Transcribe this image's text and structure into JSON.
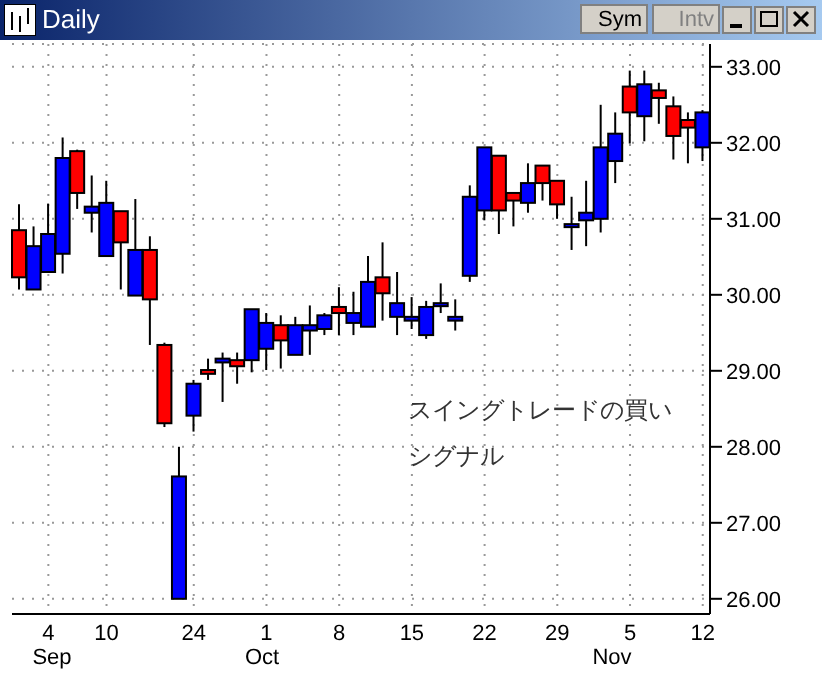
{
  "chart_data": {
    "type": "candlestick",
    "title": "Daily",
    "categories": [
      null,
      null,
      "4",
      null,
      null,
      null,
      "10",
      null,
      null,
      null,
      null,
      null,
      "24",
      null,
      null,
      null,
      null,
      "1",
      null,
      null,
      null,
      null,
      "8",
      null,
      null,
      null,
      null,
      "15",
      null,
      null,
      null,
      null,
      "22",
      null,
      null,
      null,
      null,
      "29",
      null,
      null,
      null,
      null,
      "5",
      null,
      null,
      null,
      null,
      "12"
    ],
    "ohlc": [
      [
        30.85,
        31.19,
        30.07,
        30.23
      ],
      [
        30.07,
        30.9,
        30.07,
        30.64
      ],
      [
        30.3,
        31.2,
        30.3,
        30.8
      ],
      [
        30.54,
        32.07,
        30.28,
        31.8
      ],
      [
        31.89,
        31.91,
        31.13,
        31.34
      ],
      [
        31.08,
        31.57,
        30.82,
        31.16
      ],
      [
        30.51,
        31.5,
        30.51,
        31.21
      ],
      [
        31.1,
        31.1,
        30.07,
        30.69
      ],
      [
        29.99,
        31.26,
        29.99,
        30.59
      ],
      [
        30.59,
        30.77,
        29.34,
        29.94
      ],
      [
        29.34,
        29.37,
        28.26,
        28.31
      ],
      [
        26.0,
        28.0,
        26.0,
        27.61
      ],
      [
        28.41,
        28.88,
        28.2,
        28.83
      ],
      [
        29.01,
        29.16,
        28.88,
        28.96
      ],
      [
        29.11,
        29.24,
        28.59,
        29.16
      ],
      [
        29.14,
        29.24,
        28.83,
        29.06
      ],
      [
        29.14,
        29.81,
        28.98,
        29.81
      ],
      [
        29.29,
        29.76,
        29.01,
        29.63
      ],
      [
        29.6,
        29.73,
        29.03,
        29.4
      ],
      [
        29.21,
        29.71,
        29.21,
        29.6
      ],
      [
        29.53,
        29.86,
        29.21,
        29.6
      ],
      [
        29.55,
        29.76,
        29.47,
        29.73
      ],
      [
        29.84,
        30.1,
        29.47,
        29.76
      ],
      [
        29.63,
        30.04,
        29.47,
        29.76
      ],
      [
        29.58,
        30.51,
        29.58,
        30.17
      ],
      [
        30.23,
        30.69,
        29.66,
        30.02
      ],
      [
        29.71,
        30.3,
        29.47,
        29.89
      ],
      [
        29.66,
        29.97,
        29.55,
        29.71
      ],
      [
        29.47,
        29.92,
        29.42,
        29.84
      ],
      [
        29.86,
        30.15,
        29.76,
        29.89
      ],
      [
        29.66,
        29.94,
        29.53,
        29.71
      ],
      [
        30.25,
        31.44,
        30.17,
        31.29
      ],
      [
        31.11,
        31.94,
        30.98,
        31.94
      ],
      [
        31.83,
        31.83,
        30.8,
        31.11
      ],
      [
        31.34,
        31.34,
        30.9,
        31.24
      ],
      [
        31.21,
        31.73,
        31.08,
        31.47
      ],
      [
        31.7,
        31.7,
        31.24,
        31.47
      ],
      [
        31.5,
        31.5,
        31.0,
        31.19
      ],
      [
        30.9,
        31.29,
        30.59,
        30.93
      ],
      [
        30.98,
        31.5,
        30.64,
        31.08
      ],
      [
        31.0,
        32.5,
        30.82,
        31.94
      ],
      [
        31.76,
        32.4,
        31.47,
        32.12
      ],
      [
        32.74,
        32.95,
        31.99,
        32.4
      ],
      [
        32.35,
        32.95,
        32.02,
        32.77
      ],
      [
        32.69,
        32.79,
        32.25,
        32.59
      ],
      [
        32.48,
        32.61,
        31.78,
        32.09
      ],
      [
        32.3,
        32.4,
        31.73,
        32.2
      ],
      [
        31.94,
        32.43,
        31.76,
        32.4
      ]
    ],
    "colors": [
      "#ff0000",
      "#0000ff",
      "#0000ff",
      "#0000ff",
      "#ff0000",
      "#0000ff",
      "#0000ff",
      "#ff0000",
      "#0000ff",
      "#ff0000",
      "#ff0000",
      "#0000ff",
      "#0000ff",
      "#ff0000",
      "#0000ff",
      "#ff0000",
      "#0000ff",
      "#0000ff",
      "#ff0000",
      "#0000ff",
      "#0000ff",
      "#0000ff",
      "#ff0000",
      "#0000ff",
      "#0000ff",
      "#ff0000",
      "#0000ff",
      "#0000ff",
      "#0000ff",
      "#0000ff",
      "#0000ff",
      "#0000ff",
      "#0000ff",
      "#ff0000",
      "#ff0000",
      "#0000ff",
      "#ff0000",
      "#ff0000",
      "#0000ff",
      "#0000ff",
      "#0000ff",
      "#0000ff",
      "#ff0000",
      "#0000ff",
      "#ff0000",
      "#ff0000",
      "#ff0000",
      "#0000ff"
    ],
    "ylim": [
      25.8,
      33.3
    ],
    "yticks": [
      {
        "value": 26,
        "label": "26.00"
      },
      {
        "value": 27,
        "label": "27.00"
      },
      {
        "value": 28,
        "label": "28.00"
      },
      {
        "value": 29,
        "label": "29.00"
      },
      {
        "value": 30,
        "label": "30.00"
      },
      {
        "value": 31,
        "label": "31.00"
      },
      {
        "value": 32,
        "label": "32.00"
      },
      {
        "value": 33,
        "label": "33.00"
      }
    ],
    "grid": true,
    "annotations": [
      "スイングトレードの買い",
      "シグナル",
      "Sep",
      "Oct",
      "Nov",
      "Sym",
      "Intv"
    ]
  }
}
